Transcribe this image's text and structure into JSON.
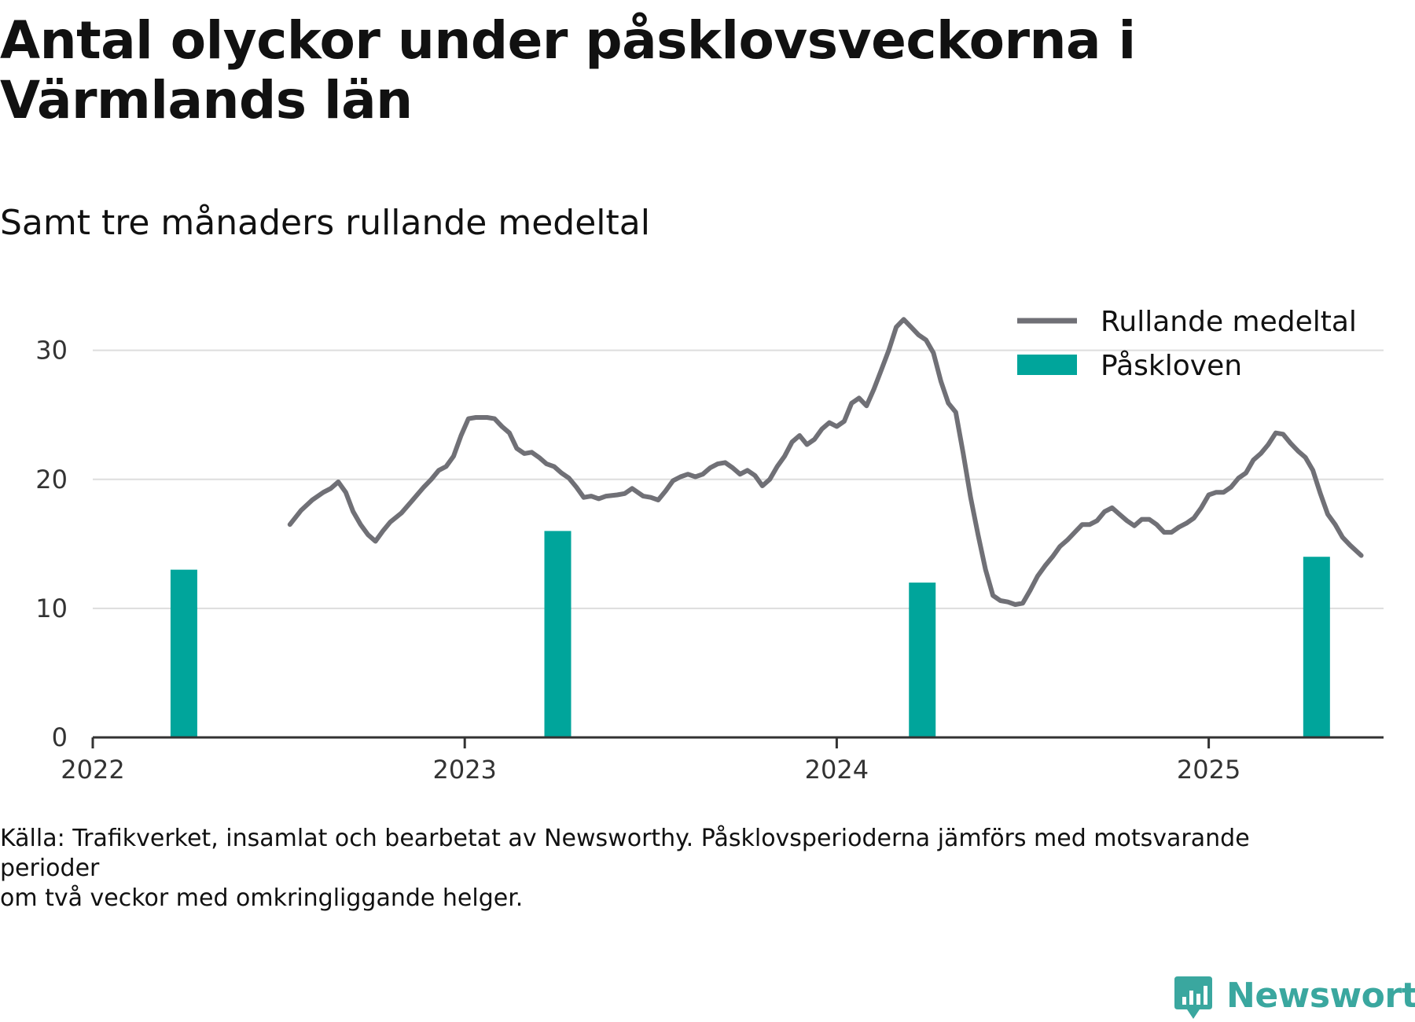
{
  "title": "Antal olyckor under påsklovsveckorna i Värmlands län",
  "subtitle": "Samt tre månaders rullande medeltal",
  "source_note": "Källa: Trafikverket, insamlat och bearbetat av Newsworthy. Påsklovsperioderna jämförs med motsvarande perioder\nom två veckor med omkringliggande helger.",
  "brand": {
    "name": "Newsworthy",
    "color": "#3aa79f"
  },
  "chart_data": {
    "type": "bar+line",
    "x_axis": {
      "type": "time",
      "range": [
        2022.0,
        2025.47
      ],
      "ticks": [
        "2022",
        "2023",
        "2024",
        "2025"
      ]
    },
    "y_axis": {
      "range": [
        0,
        34
      ],
      "ticks": [
        0,
        10,
        20,
        30
      ]
    },
    "grid": "horizontal",
    "legend_position": "top-right",
    "colors": {
      "line": "#707076",
      "bars": "#00a59b",
      "grid": "#dddddd",
      "axis": "#333333"
    },
    "series": [
      {
        "name": "Rullande medeltal",
        "type": "line",
        "points": [
          [
            2022.53,
            16.5
          ],
          [
            2022.56,
            17.6
          ],
          [
            2022.59,
            18.4
          ],
          [
            2022.62,
            19.0
          ],
          [
            2022.64,
            19.3
          ],
          [
            2022.66,
            19.8
          ],
          [
            2022.68,
            19.0
          ],
          [
            2022.7,
            17.5
          ],
          [
            2022.72,
            16.5
          ],
          [
            2022.74,
            15.7
          ],
          [
            2022.76,
            15.2
          ],
          [
            2022.78,
            16.0
          ],
          [
            2022.8,
            16.7
          ],
          [
            2022.83,
            17.4
          ],
          [
            2022.86,
            18.4
          ],
          [
            2022.89,
            19.4
          ],
          [
            2022.91,
            20.0
          ],
          [
            2022.93,
            20.7
          ],
          [
            2022.95,
            21.0
          ],
          [
            2022.97,
            21.8
          ],
          [
            2022.99,
            23.4
          ],
          [
            2023.01,
            24.7
          ],
          [
            2023.03,
            24.8
          ],
          [
            2023.06,
            24.8
          ],
          [
            2023.08,
            24.7
          ],
          [
            2023.1,
            24.1
          ],
          [
            2023.12,
            23.6
          ],
          [
            2023.14,
            22.4
          ],
          [
            2023.16,
            22.0
          ],
          [
            2023.18,
            22.1
          ],
          [
            2023.2,
            21.7
          ],
          [
            2023.22,
            21.2
          ],
          [
            2023.24,
            21.0
          ],
          [
            2023.26,
            20.5
          ],
          [
            2023.28,
            20.1
          ],
          [
            2023.3,
            19.4
          ],
          [
            2023.32,
            18.6
          ],
          [
            2023.34,
            18.7
          ],
          [
            2023.36,
            18.5
          ],
          [
            2023.38,
            18.7
          ],
          [
            2023.41,
            18.8
          ],
          [
            2023.43,
            18.9
          ],
          [
            2023.45,
            19.3
          ],
          [
            2023.48,
            18.7
          ],
          [
            2023.5,
            18.6
          ],
          [
            2023.52,
            18.4
          ],
          [
            2023.54,
            19.1
          ],
          [
            2023.56,
            19.9
          ],
          [
            2023.58,
            20.2
          ],
          [
            2023.6,
            20.4
          ],
          [
            2023.62,
            20.2
          ],
          [
            2023.64,
            20.4
          ],
          [
            2023.66,
            20.9
          ],
          [
            2023.68,
            21.2
          ],
          [
            2023.7,
            21.3
          ],
          [
            2023.72,
            20.9
          ],
          [
            2023.74,
            20.4
          ],
          [
            2023.76,
            20.7
          ],
          [
            2023.78,
            20.3
          ],
          [
            2023.8,
            19.5
          ],
          [
            2023.82,
            20.0
          ],
          [
            2023.84,
            21.0
          ],
          [
            2023.86,
            21.8
          ],
          [
            2023.88,
            22.9
          ],
          [
            2023.9,
            23.4
          ],
          [
            2023.92,
            22.7
          ],
          [
            2023.94,
            23.1
          ],
          [
            2023.96,
            23.9
          ],
          [
            2023.98,
            24.4
          ],
          [
            2024.0,
            24.1
          ],
          [
            2024.02,
            24.5
          ],
          [
            2024.04,
            25.9
          ],
          [
            2024.06,
            26.3
          ],
          [
            2024.08,
            25.7
          ],
          [
            2024.1,
            27.0
          ],
          [
            2024.12,
            28.5
          ],
          [
            2024.14,
            30.0
          ],
          [
            2024.16,
            31.8
          ],
          [
            2024.18,
            32.4
          ],
          [
            2024.2,
            31.8
          ],
          [
            2024.22,
            31.2
          ],
          [
            2024.24,
            30.8
          ],
          [
            2024.26,
            29.8
          ],
          [
            2024.28,
            27.6
          ],
          [
            2024.3,
            25.9
          ],
          [
            2024.32,
            25.2
          ],
          [
            2024.34,
            22.0
          ],
          [
            2024.36,
            18.6
          ],
          [
            2024.38,
            15.7
          ],
          [
            2024.4,
            13.0
          ],
          [
            2024.42,
            11.0
          ],
          [
            2024.44,
            10.6
          ],
          [
            2024.46,
            10.5
          ],
          [
            2024.48,
            10.3
          ],
          [
            2024.5,
            10.4
          ],
          [
            2024.52,
            11.4
          ],
          [
            2024.54,
            12.5
          ],
          [
            2024.56,
            13.3
          ],
          [
            2024.58,
            14.0
          ],
          [
            2024.6,
            14.8
          ],
          [
            2024.62,
            15.3
          ],
          [
            2024.64,
            15.9
          ],
          [
            2024.66,
            16.5
          ],
          [
            2024.68,
            16.5
          ],
          [
            2024.7,
            16.8
          ],
          [
            2024.72,
            17.5
          ],
          [
            2024.74,
            17.8
          ],
          [
            2024.76,
            17.3
          ],
          [
            2024.78,
            16.8
          ],
          [
            2024.8,
            16.4
          ],
          [
            2024.82,
            16.9
          ],
          [
            2024.84,
            16.9
          ],
          [
            2024.86,
            16.5
          ],
          [
            2024.88,
            15.9
          ],
          [
            2024.9,
            15.9
          ],
          [
            2024.92,
            16.3
          ],
          [
            2024.94,
            16.6
          ],
          [
            2024.96,
            17.0
          ],
          [
            2024.98,
            17.8
          ],
          [
            2025.0,
            18.8
          ],
          [
            2025.02,
            19.0
          ],
          [
            2025.04,
            19.0
          ],
          [
            2025.06,
            19.4
          ],
          [
            2025.08,
            20.1
          ],
          [
            2025.1,
            20.5
          ],
          [
            2025.12,
            21.5
          ],
          [
            2025.14,
            22.0
          ],
          [
            2025.16,
            22.7
          ],
          [
            2025.18,
            23.6
          ],
          [
            2025.2,
            23.5
          ],
          [
            2025.22,
            22.8
          ],
          [
            2025.24,
            22.2
          ],
          [
            2025.26,
            21.7
          ],
          [
            2025.28,
            20.7
          ],
          [
            2025.3,
            18.9
          ],
          [
            2025.32,
            17.3
          ],
          [
            2025.34,
            16.5
          ],
          [
            2025.36,
            15.5
          ],
          [
            2025.38,
            14.9
          ],
          [
            2025.41,
            14.1
          ]
        ]
      },
      {
        "name": "Påskloven",
        "type": "bar",
        "points": [
          [
            2022.245,
            13
          ],
          [
            2023.25,
            16
          ],
          [
            2024.23,
            12
          ],
          [
            2025.29,
            14
          ]
        ]
      }
    ]
  }
}
